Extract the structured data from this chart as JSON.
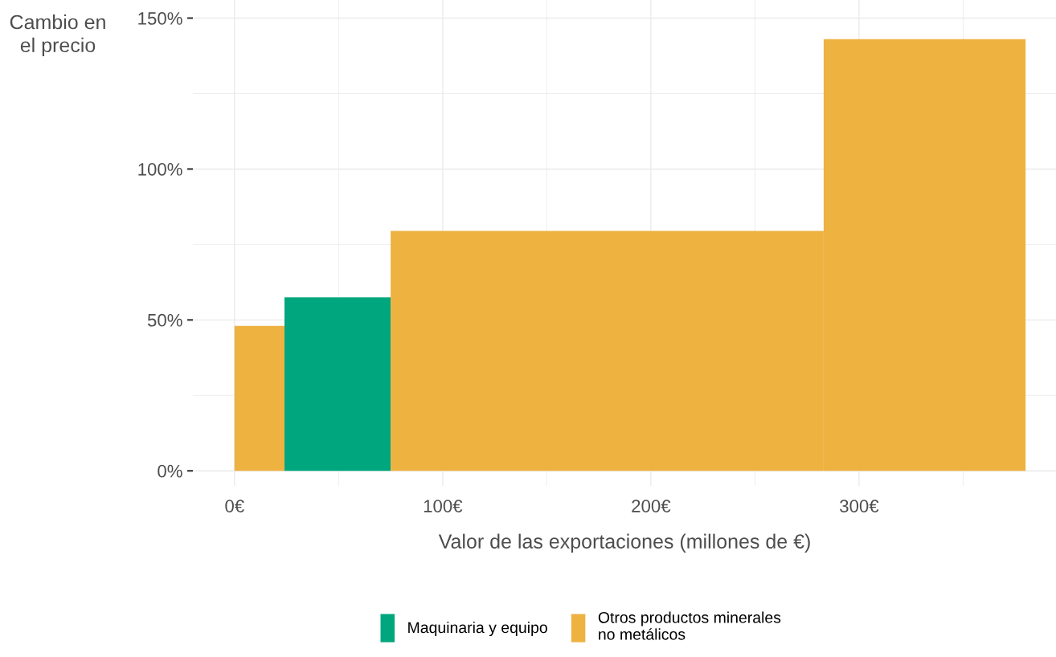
{
  "chart_data": {
    "type": "histogram",
    "xlabel": "Valor de las exportaciones (millones de €)",
    "ylabel": "Cambio en\nel precio",
    "bins": [
      0,
      24,
      75,
      283,
      380
    ],
    "series": [
      {
        "name": "Maquinaria y equipo",
        "color": "#00a67d",
        "values": [
          null,
          57.5,
          null,
          null
        ]
      },
      {
        "name": "Otros productos minerales\nno metálicos",
        "color": "#edb240",
        "values": [
          48,
          null,
          79.5,
          143
        ]
      }
    ],
    "xlim": [
      -20,
      395
    ],
    "xticks": [
      {
        "value": 0,
        "label": "0€"
      },
      {
        "value": 100,
        "label": "100€"
      },
      {
        "value": 200,
        "label": "200€"
      },
      {
        "value": 300,
        "label": "300€"
      }
    ],
    "ylim": [
      -5,
      156
    ],
    "yticks": [
      {
        "value": 0,
        "label": "0%"
      },
      {
        "value": 50,
        "label": "50%"
      },
      {
        "value": 100,
        "label": "100%"
      },
      {
        "value": 150,
        "label": "150%"
      }
    ],
    "grid": true,
    "legend": "bottom"
  }
}
